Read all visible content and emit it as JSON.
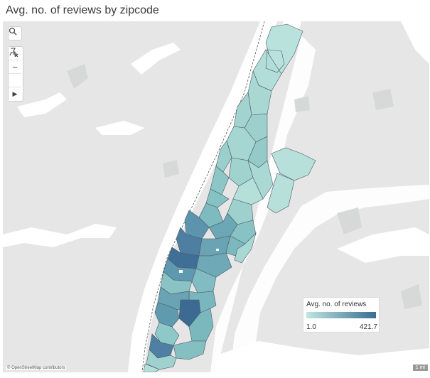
{
  "title": "Avg. no. of reviews by zipcode",
  "controls": {
    "search_icon": "magnifier-icon",
    "zoom_in_label": "+",
    "zoom_out_label": "−",
    "pin_icon": "pin-map-icon",
    "play_label": "▶"
  },
  "legend": {
    "title": "Avg. no. of reviews",
    "min_label": "1.0",
    "max_label": "421.7",
    "min_value": 1.0,
    "max_value": 421.7,
    "color_low": "#bfe6e0",
    "color_high": "#3a6d92"
  },
  "attribution": "© OpenStreetMap contributors",
  "scale_label": "1 mi",
  "colors": {
    "land": "#e6e6e6",
    "water": "#ffffff",
    "park": "#d6d9d8"
  }
}
